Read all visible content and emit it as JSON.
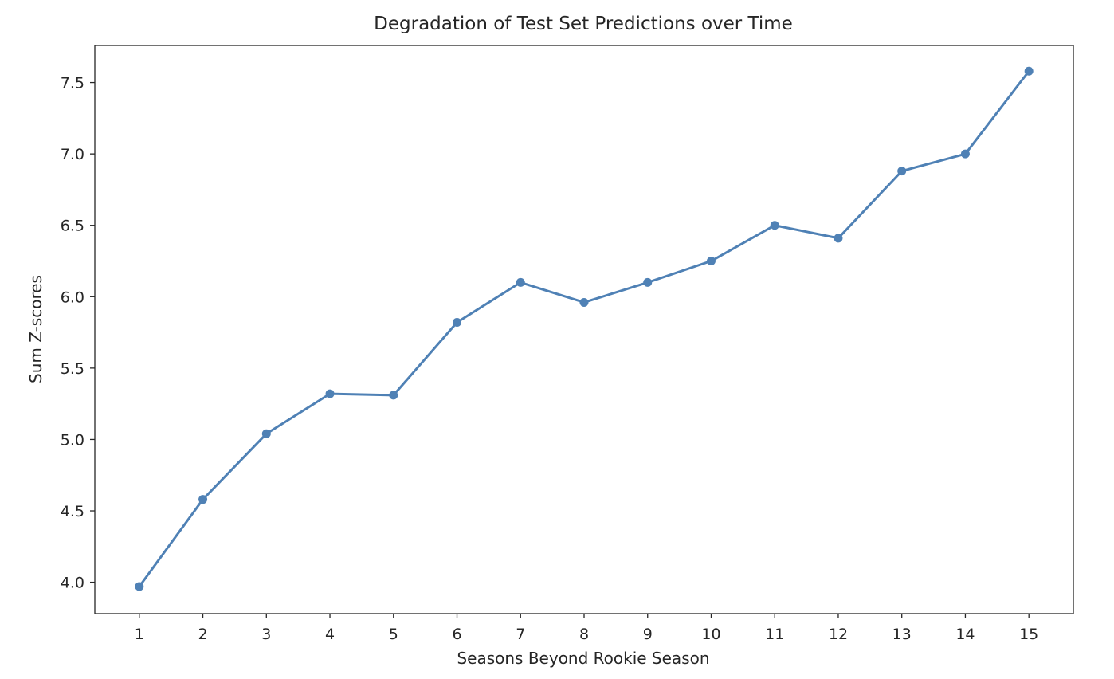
{
  "chart_data": {
    "type": "line",
    "title": "Degradation of Test Set Predictions over Time",
    "xlabel": "Seasons Beyond Rookie Season",
    "ylabel": "Sum Z-scores",
    "x": [
      1,
      2,
      3,
      4,
      5,
      6,
      7,
      8,
      9,
      10,
      11,
      12,
      13,
      14,
      15
    ],
    "x_tick_labels": [
      "1",
      "2",
      "3",
      "4",
      "5",
      "6",
      "7",
      "8",
      "9",
      "10",
      "11",
      "12",
      "13",
      "14",
      "15"
    ],
    "y_ticks": [
      4.0,
      4.5,
      5.0,
      5.5,
      6.0,
      6.5,
      7.0,
      7.5
    ],
    "y_tick_labels": [
      "4.0",
      "4.5",
      "5.0",
      "5.5",
      "6.0",
      "6.5",
      "7.0",
      "7.5"
    ],
    "xlim": [
      0.3,
      15.7
    ],
    "ylim": [
      3.78,
      7.76
    ],
    "grid": false,
    "legend": "none",
    "series": [
      {
        "color": "#4f81b5",
        "marker": "circle",
        "values": [
          3.97,
          4.58,
          5.04,
          5.32,
          5.31,
          5.82,
          6.1,
          5.96,
          6.1,
          6.25,
          6.5,
          6.41,
          6.88,
          7.0,
          7.58
        ]
      }
    ]
  }
}
